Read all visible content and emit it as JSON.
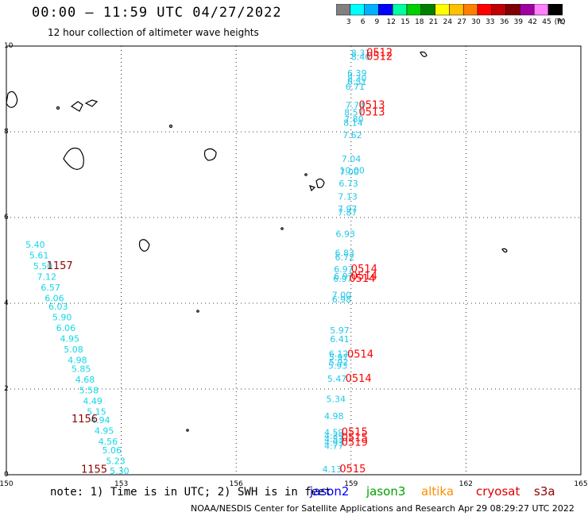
{
  "header": {
    "title": "00:00 – 11:59 UTC 04/27/2022",
    "subtitle": "12 hour collection of altimeter wave heights"
  },
  "colorbar": {
    "labels": [
      "3",
      "6",
      "9",
      "12",
      "15",
      "18",
      "21",
      "24",
      "27",
      "30",
      "33",
      "36",
      "39",
      "42",
      "45",
      "70"
    ],
    "unit": "(ft)",
    "colors": [
      "#808080",
      "#00ffff",
      "#00b0ff",
      "#0000ff",
      "#00ffa0",
      "#00d000",
      "#008000",
      "#ffff00",
      "#ffc000",
      "#ff8000",
      "#ff0000",
      "#c00000",
      "#800000",
      "#a000a0",
      "#ff80ff",
      "#000000"
    ]
  },
  "axes": {
    "x_ticks": [
      "150",
      "153",
      "156",
      "159",
      "162",
      "165"
    ],
    "y_ticks": [
      "0",
      "2",
      "4",
      "6",
      "8",
      "10"
    ],
    "xlim": [
      150,
      165
    ],
    "ylim": [
      0,
      10
    ]
  },
  "chart_data": {
    "type": "scatter",
    "xlim": [
      150,
      165
    ],
    "ylim": [
      0,
      10
    ],
    "colors": {
      "wave_a": "#22c8e8",
      "wave_b": "#0fd8e8",
      "time": "#ff0000",
      "time_dark": "#8b0000"
    },
    "track_a": [
      {
        "x": 159.0,
        "y": 9.77,
        "v": "8.31"
      },
      {
        "x": 159.0,
        "y": 9.68,
        "v": "8.40"
      },
      {
        "x": 158.9,
        "y": 9.3,
        "v": "6.39"
      },
      {
        "x": 158.9,
        "y": 9.18,
        "v": "8.30"
      },
      {
        "x": 158.9,
        "y": 9.09,
        "v": "6.51"
      },
      {
        "x": 158.85,
        "y": 8.98,
        "v": "6.71"
      },
      {
        "x": 158.85,
        "y": 8.55,
        "v": "7.74"
      },
      {
        "x": 158.82,
        "y": 8.38,
        "v": "8.57"
      },
      {
        "x": 158.82,
        "y": 8.22,
        "v": "7.80"
      },
      {
        "x": 158.8,
        "y": 8.14,
        "v": "8.14"
      },
      {
        "x": 158.78,
        "y": 7.85,
        "v": "7.62"
      },
      {
        "x": 158.75,
        "y": 7.3,
        "v": "7.04"
      },
      {
        "x": 158.7,
        "y": 7.03,
        "v": "10.00"
      },
      {
        "x": 158.7,
        "y": 6.99,
        "v": "7.00"
      },
      {
        "x": 158.68,
        "y": 6.72,
        "v": "6.73"
      },
      {
        "x": 158.66,
        "y": 6.42,
        "v": "7.13"
      },
      {
        "x": 158.65,
        "y": 6.13,
        "v": "7.97"
      },
      {
        "x": 158.65,
        "y": 6.05,
        "v": "7.87"
      },
      {
        "x": 158.6,
        "y": 5.55,
        "v": "6.93"
      },
      {
        "x": 158.58,
        "y": 5.1,
        "v": "6.83"
      },
      {
        "x": 158.58,
        "y": 5.0,
        "v": "6.72"
      },
      {
        "x": 158.55,
        "y": 4.72,
        "v": "6.97"
      },
      {
        "x": 158.55,
        "y": 4.56,
        "v": "6.97"
      },
      {
        "x": 158.53,
        "y": 4.5,
        "v": "6.97"
      },
      {
        "x": 158.5,
        "y": 4.12,
        "v": "7.00"
      },
      {
        "x": 158.5,
        "y": 4.02,
        "v": "6.98"
      },
      {
        "x": 158.45,
        "y": 3.3,
        "v": "5.97"
      },
      {
        "x": 158.45,
        "y": 3.09,
        "v": "6.41"
      },
      {
        "x": 158.42,
        "y": 2.75,
        "v": "6.12"
      },
      {
        "x": 158.42,
        "y": 2.67,
        "v": "5.97"
      },
      {
        "x": 158.42,
        "y": 2.56,
        "v": "5.92"
      },
      {
        "x": 158.4,
        "y": 2.47,
        "v": "5.93"
      },
      {
        "x": 158.38,
        "y": 2.17,
        "v": "5.47"
      },
      {
        "x": 158.35,
        "y": 1.69,
        "v": "5.34"
      },
      {
        "x": 158.3,
        "y": 1.3,
        "v": "4.98"
      },
      {
        "x": 158.3,
        "y": 0.92,
        "v": "4.59"
      },
      {
        "x": 158.3,
        "y": 0.83,
        "v": "4.39"
      },
      {
        "x": 158.3,
        "y": 0.76,
        "v": "4.53"
      },
      {
        "x": 158.3,
        "y": 0.68,
        "v": "4.93"
      },
      {
        "x": 158.3,
        "y": 0.6,
        "v": "4.77"
      },
      {
        "x": 158.25,
        "y": 0.06,
        "v": "4.13"
      }
    ],
    "track_b": [
      {
        "x": 150.5,
        "y": 5.3,
        "v": "5.40"
      },
      {
        "x": 150.6,
        "y": 5.05,
        "v": "5.61"
      },
      {
        "x": 150.7,
        "y": 4.8,
        "v": "5.50"
      },
      {
        "x": 150.8,
        "y": 4.55,
        "v": "7.12"
      },
      {
        "x": 150.9,
        "y": 4.3,
        "v": "6.57"
      },
      {
        "x": 151.0,
        "y": 4.05,
        "v": "6.06"
      },
      {
        "x": 151.1,
        "y": 3.85,
        "v": "6.03"
      },
      {
        "x": 151.2,
        "y": 3.6,
        "v": "5.90"
      },
      {
        "x": 151.3,
        "y": 3.35,
        "v": "6.06"
      },
      {
        "x": 151.4,
        "y": 3.1,
        "v": "4.95"
      },
      {
        "x": 151.5,
        "y": 2.85,
        "v": "5.08"
      },
      {
        "x": 151.6,
        "y": 2.6,
        "v": "4.98"
      },
      {
        "x": 151.7,
        "y": 2.4,
        "v": "5.85"
      },
      {
        "x": 151.8,
        "y": 2.15,
        "v": "4.68"
      },
      {
        "x": 151.9,
        "y": 1.9,
        "v": "5.58"
      },
      {
        "x": 152.0,
        "y": 1.65,
        "v": "4.49"
      },
      {
        "x": 152.1,
        "y": 1.4,
        "v": "5.15"
      },
      {
        "x": 152.2,
        "y": 1.2,
        "v": "4.94"
      },
      {
        "x": 152.3,
        "y": 0.95,
        "v": "4.95"
      },
      {
        "x": 152.4,
        "y": 0.7,
        "v": "4.56"
      },
      {
        "x": 152.5,
        "y": 0.5,
        "v": "5.06"
      },
      {
        "x": 152.6,
        "y": 0.25,
        "v": "5.23"
      },
      {
        "x": 152.7,
        "y": 0.02,
        "v": "5.30"
      }
    ],
    "time_labels": [
      {
        "x": 159.4,
        "y": 9.77,
        "t": "0512",
        "dark": false
      },
      {
        "x": 159.4,
        "y": 9.68,
        "t": "0512",
        "dark": false
      },
      {
        "x": 159.2,
        "y": 8.55,
        "t": "0513",
        "dark": false
      },
      {
        "x": 159.2,
        "y": 8.38,
        "t": "0513",
        "dark": false
      },
      {
        "x": 159.0,
        "y": 4.72,
        "t": "0514",
        "dark": false
      },
      {
        "x": 159.0,
        "y": 4.56,
        "t": "0514",
        "dark": false
      },
      {
        "x": 158.95,
        "y": 4.5,
        "t": "0514",
        "dark": false
      },
      {
        "x": 158.9,
        "y": 2.73,
        "t": "0514",
        "dark": false
      },
      {
        "x": 158.85,
        "y": 2.17,
        "t": "0514",
        "dark": false
      },
      {
        "x": 158.75,
        "y": 0.92,
        "t": "0515",
        "dark": false
      },
      {
        "x": 158.75,
        "y": 0.79,
        "t": "0515",
        "dark": false
      },
      {
        "x": 158.75,
        "y": 0.68,
        "t": "0519",
        "dark": false
      },
      {
        "x": 158.7,
        "y": 0.06,
        "t": "0515",
        "dark": false
      },
      {
        "x": 151.05,
        "y": 4.8,
        "t": "1157",
        "dark": true
      },
      {
        "x": 151.7,
        "y": 1.22,
        "t": "1156",
        "dark": true
      },
      {
        "x": 151.95,
        "y": 0.05,
        "t": "1155",
        "dark": true
      }
    ]
  },
  "footer": {
    "note": "note: 1) Time is in UTC; 2) SWH is in feet",
    "missions": [
      {
        "name": "jason2",
        "color": "#0000ff"
      },
      {
        "name": "jason3",
        "color": "#00a000"
      },
      {
        "name": "altika",
        "color": "#ff8c00"
      },
      {
        "name": "cryosat",
        "color": "#dd0000"
      },
      {
        "name": "s3a",
        "color": "#8b0000"
      }
    ],
    "credit": "NOAA/NESDIS Center for Satellite Applications and Research    Apr 29 08:29:27 UTC 2022"
  }
}
